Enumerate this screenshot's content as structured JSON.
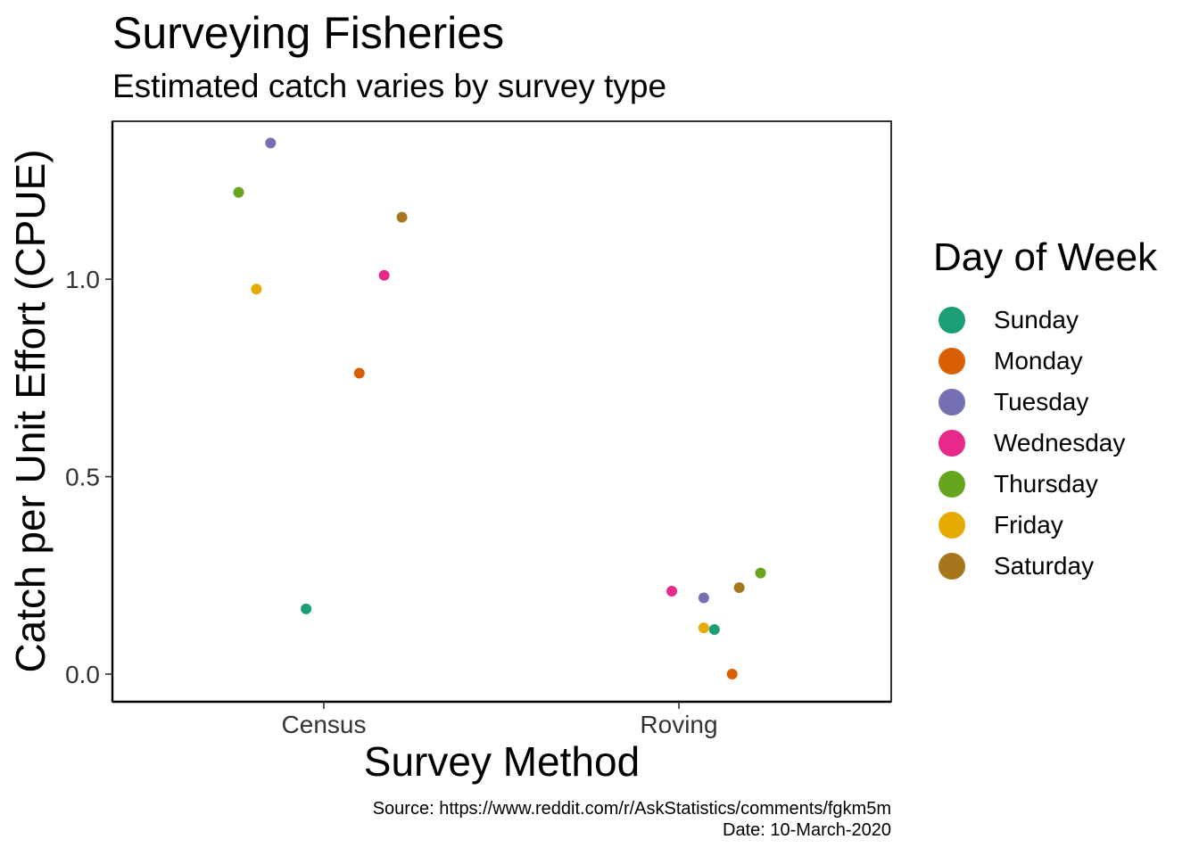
{
  "chart_data": {
    "type": "scatter",
    "title": "Surveying Fisheries",
    "subtitle": "Estimated catch varies by survey type",
    "xlabel": "Survey Method",
    "ylabel": "Catch per Unit Effort (CPUE)",
    "categories": [
      "Census",
      "Roving"
    ],
    "yticks": [
      0.0,
      0.5,
      1.0
    ],
    "ytick_labels": [
      "0.0",
      "0.5",
      "1.0"
    ],
    "ylim": [
      -0.07,
      1.4
    ],
    "grid": false,
    "legend": {
      "title": "Day of Week",
      "placement": "right",
      "entries": [
        {
          "label": "Sunday",
          "color": "#1b9e77"
        },
        {
          "label": "Monday",
          "color": "#d95f02"
        },
        {
          "label": "Tuesday",
          "color": "#7570b3"
        },
        {
          "label": "Wednesday",
          "color": "#e7298a"
        },
        {
          "label": "Thursday",
          "color": "#66a61e"
        },
        {
          "label": "Friday",
          "color": "#e6ab02"
        },
        {
          "label": "Saturday",
          "color": "#a6761d"
        }
      ]
    },
    "series": [
      {
        "name": "Sunday",
        "points": [
          {
            "category": "Census",
            "jitter": -0.05,
            "y": 0.165
          },
          {
            "category": "Roving",
            "jitter": 0.1,
            "y": 0.113
          }
        ]
      },
      {
        "name": "Monday",
        "points": [
          {
            "category": "Census",
            "jitter": 0.1,
            "y": 0.762
          },
          {
            "category": "Roving",
            "jitter": 0.15,
            "y": 0.0
          }
        ]
      },
      {
        "name": "Tuesday",
        "points": [
          {
            "category": "Census",
            "jitter": -0.15,
            "y": 1.345
          },
          {
            "category": "Roving",
            "jitter": 0.07,
            "y": 0.193
          }
        ]
      },
      {
        "name": "Wednesday",
        "points": [
          {
            "category": "Census",
            "jitter": 0.17,
            "y": 1.01
          },
          {
            "category": "Roving",
            "jitter": -0.02,
            "y": 0.21
          }
        ]
      },
      {
        "name": "Thursday",
        "points": [
          {
            "category": "Census",
            "jitter": -0.24,
            "y": 1.22
          },
          {
            "category": "Roving",
            "jitter": 0.23,
            "y": 0.256
          }
        ]
      },
      {
        "name": "Friday",
        "points": [
          {
            "category": "Census",
            "jitter": -0.19,
            "y": 0.975
          },
          {
            "category": "Roving",
            "jitter": 0.07,
            "y": 0.117
          }
        ]
      },
      {
        "name": "Saturday",
        "points": [
          {
            "category": "Census",
            "jitter": 0.22,
            "y": 1.157
          },
          {
            "category": "Roving",
            "jitter": 0.17,
            "y": 0.219
          }
        ]
      }
    ]
  },
  "caption": {
    "source": "Source: https://www.reddit.com/r/AskStatistics/comments/fgkm5m",
    "date": "Date: 10-March-2020"
  }
}
